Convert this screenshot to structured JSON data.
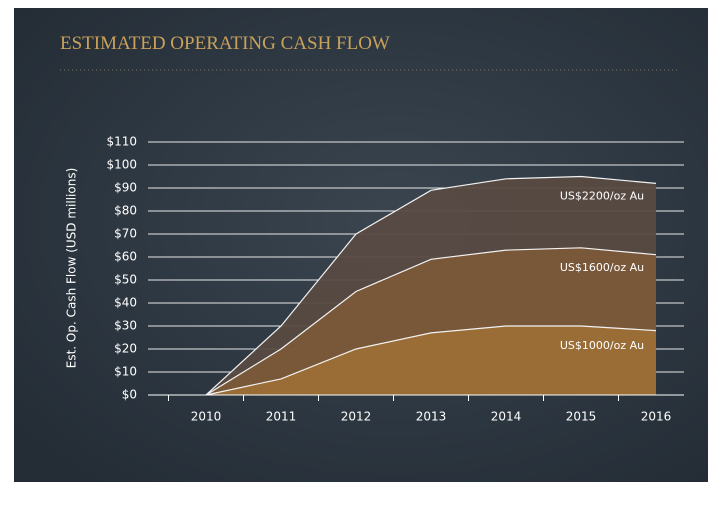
{
  "chart_data": {
    "type": "area",
    "title": "ESTIMATED OPERATING CASH FLOW",
    "y_label": "Est. Op. Cash Flow (USD millions)",
    "categories": [
      "2010",
      "2011",
      "2012",
      "2013",
      "2014",
      "2015",
      "2016"
    ],
    "series": [
      {
        "name": "US$1000/oz Au",
        "color": "#9c6e36",
        "values": [
          0,
          7,
          20,
          27,
          30,
          30,
          28
        ]
      },
      {
        "name": "US$1600/oz Au",
        "color": "#7b5a3a",
        "values": [
          0,
          20,
          45,
          59,
          63,
          64,
          61
        ]
      },
      {
        "name": "US$2200/oz Au",
        "color": "#584a42",
        "values": [
          0,
          30,
          70,
          89,
          94,
          95,
          92
        ]
      }
    ],
    "ylim": [
      0,
      110
    ],
    "yticks": [
      {
        "value": 0,
        "label": "$0"
      },
      {
        "value": 10,
        "label": "$10"
      },
      {
        "value": 20,
        "label": "$20"
      },
      {
        "value": 30,
        "label": "$30"
      },
      {
        "value": 40,
        "label": "$40"
      },
      {
        "value": 50,
        "label": "$50"
      },
      {
        "value": 60,
        "label": "$60"
      },
      {
        "value": 70,
        "label": "$70"
      },
      {
        "value": 80,
        "label": "$80"
      },
      {
        "value": 90,
        "label": "$90"
      },
      {
        "value": 100,
        "label": "$100"
      },
      {
        "value": 110,
        "label": "$110"
      }
    ],
    "grid": true
  }
}
